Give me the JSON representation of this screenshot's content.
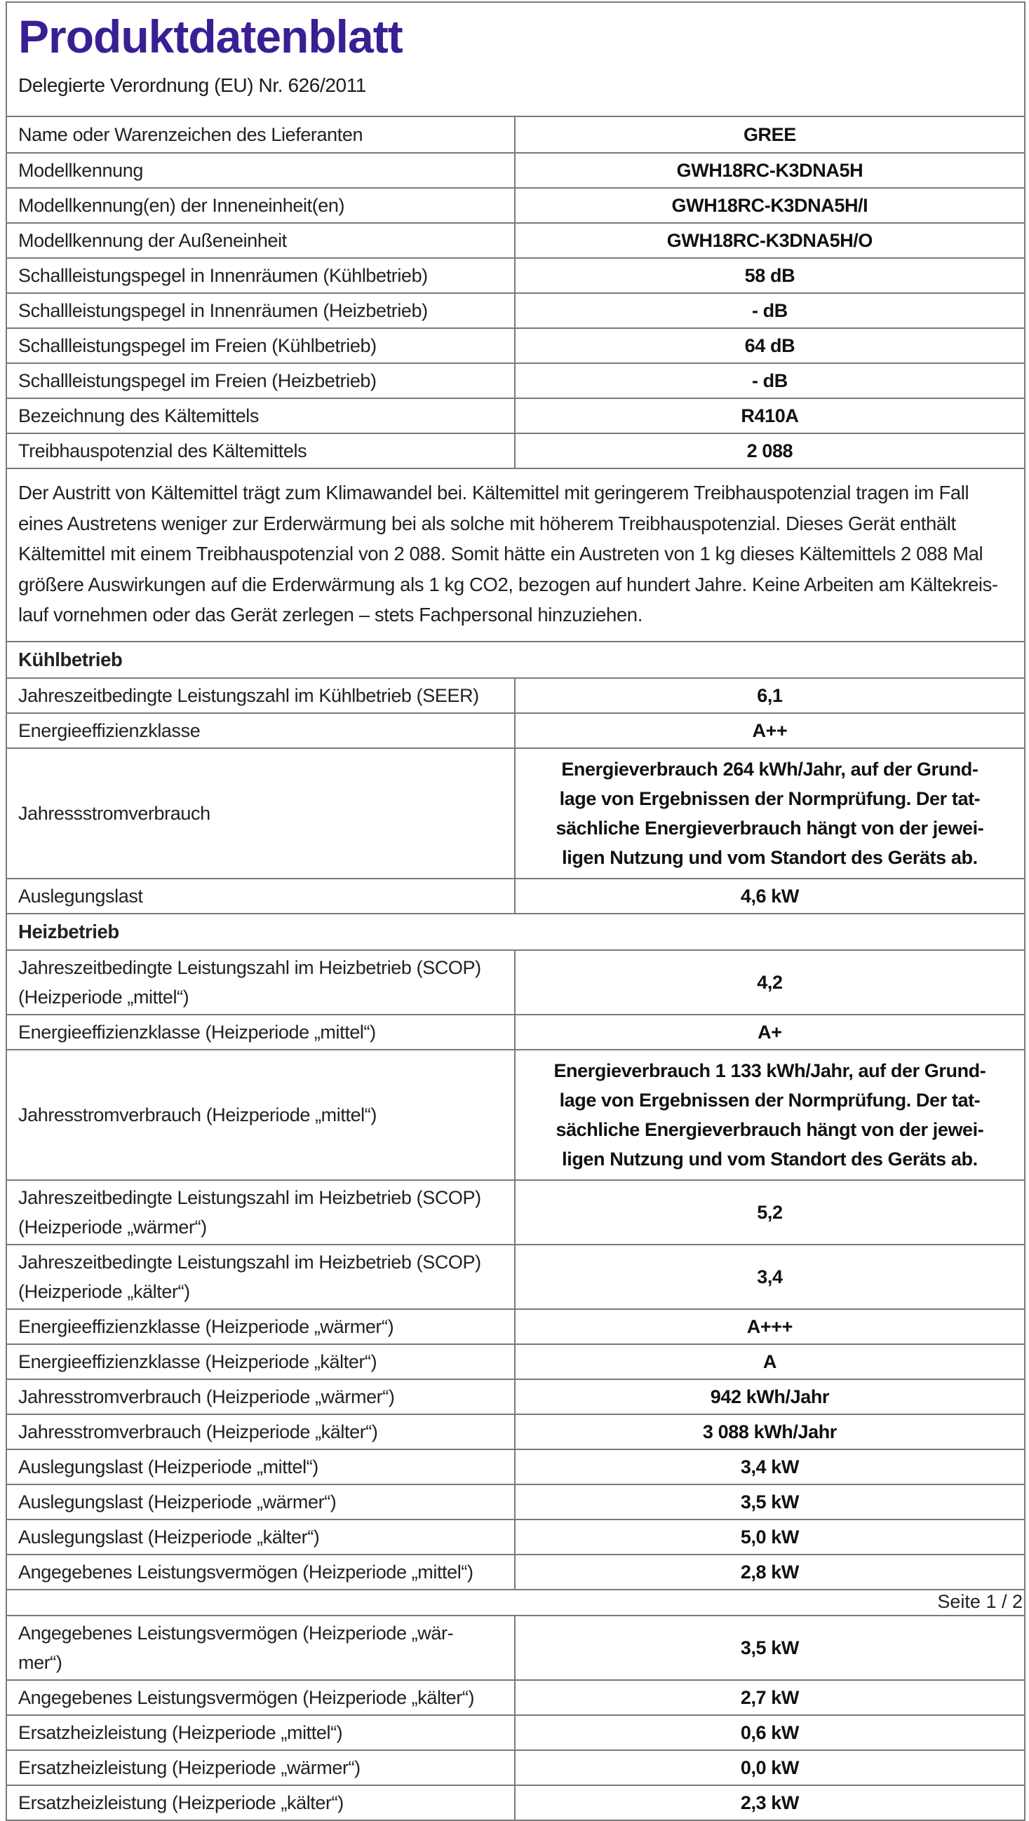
{
  "document": {
    "title": "Produktdatenblatt",
    "title_color": "#3a1f92",
    "subtitle": "Delegierte Verordnung (EU) Nr. 626/2011",
    "page_indicator": "Seite 1 / 2",
    "border_color": "#7a7a7a",
    "rows": [
      {
        "type": "data",
        "label": "Name oder Warenzeichen des Lieferanten",
        "value": "GREE"
      },
      {
        "type": "data",
        "label": "Modellkennung",
        "value": "GWH18RC-K3DNA5H"
      },
      {
        "type": "data",
        "label": "Modellkennung(en) der Inneneinheit(en)",
        "value": "GWH18RC-K3DNA5H/I"
      },
      {
        "type": "data",
        "label": "Modellkennung der Außeneinheit",
        "value": "GWH18RC-K3DNA5H/O"
      },
      {
        "type": "data",
        "label": "Schallleistungspegel in Innenräumen (Kühlbetrieb)",
        "value": "58 dB"
      },
      {
        "type": "data",
        "label": "Schallleistungspegel in Innenräumen (Heizbetrieb)",
        "value": "- dB"
      },
      {
        "type": "data",
        "label": "Schallleistungspegel im Freien (Kühlbetrieb)",
        "value": "64 dB"
      },
      {
        "type": "data",
        "label": "Schallleistungspegel im Freien (Heizbetrieb)",
        "value": "- dB"
      },
      {
        "type": "data",
        "label": "Bezeichnung des Kältemittels",
        "value": "R410A"
      },
      {
        "type": "data",
        "label": "Treibhauspotenzial des Kältemittels",
        "value": "2 088"
      },
      {
        "type": "note",
        "lines": [
          "Der Austritt von Kältemittel trägt zum Klimawandel bei. Kältemittel mit geringerem Treibhauspotenzial tragen im Fall",
          "eines Austretens weniger zur Erderwärmung bei als solche mit höherem Treibhauspotenzial. Dieses Gerät enthält",
          "Kältemittel mit einem Treibhauspotenzial von 2 088. Somit hätte ein Austreten von 1 kg dieses Kältemittels 2 088 Mal",
          "größere Auswirkungen auf die Erderwärmung als 1 kg CO2, bezogen auf hundert Jahre. Keine Arbeiten am Kältekreis-",
          "lauf vornehmen oder das Gerät zerlegen – stets Fachpersonal hinzuziehen."
        ]
      },
      {
        "type": "section",
        "label": "Kühlbetrieb"
      },
      {
        "type": "data",
        "label": "Jahreszeitbedingte Leistungszahl im Kühlbetrieb (SEER)",
        "value": "6,1"
      },
      {
        "type": "data",
        "label": "Energieeffizienzklasse",
        "value": "A++"
      },
      {
        "type": "data",
        "label": "Jahressstromverbrauch",
        "value": [
          "Energieverbrauch 264 kWh/Jahr, auf der Grund-",
          "lage von Ergebnissen der Normprüfung. Der tat-",
          "sächliche Energieverbrauch hängt von der jewei-",
          "ligen Nutzung und vom Standort des Geräts ab."
        ]
      },
      {
        "type": "data",
        "label": "Auslegungslast",
        "value": "4,6 kW"
      },
      {
        "type": "section",
        "label": "Heizbetrieb"
      },
      {
        "type": "data",
        "label": [
          "Jahreszeitbedingte Leistungszahl im Heizbetrieb (SCOP)",
          "(Heizperiode „mittel“)"
        ],
        "value": "4,2"
      },
      {
        "type": "data",
        "label": "Energieeffizienzklasse (Heizperiode „mittel“)",
        "value": "A+"
      },
      {
        "type": "data",
        "label": "Jahresstromverbrauch (Heizperiode „mittel“)",
        "value": [
          "Energieverbrauch 1 133 kWh/Jahr, auf der Grund-",
          "lage von Ergebnissen der Normprüfung. Der tat-",
          "sächliche Energieverbrauch hängt von der jewei-",
          "ligen Nutzung und vom Standort des Geräts ab."
        ]
      },
      {
        "type": "data",
        "label": [
          "Jahreszeitbedingte Leistungszahl im Heizbetrieb (SCOP)",
          "(Heizperiode „wärmer“)"
        ],
        "value": "5,2"
      },
      {
        "type": "data",
        "label": [
          "Jahreszeitbedingte Leistungszahl im Heizbetrieb (SCOP)",
          "(Heizperiode „kälter“)"
        ],
        "value": "3,4"
      },
      {
        "type": "data",
        "label": "Energieeffizienzklasse (Heizperiode „wärmer“)",
        "value": "A+++"
      },
      {
        "type": "data",
        "label": "Energieeffizienzklasse (Heizperiode „kälter“)",
        "value": "A"
      },
      {
        "type": "data",
        "label": "Jahresstromverbrauch (Heizperiode „wärmer“)",
        "value": "942 kWh/Jahr"
      },
      {
        "type": "data",
        "label": "Jahresstromverbrauch (Heizperiode „kälter“)",
        "value": "3 088 kWh/Jahr"
      },
      {
        "type": "data",
        "label": "Auslegungslast (Heizperiode „mittel“)",
        "value": "3,4 kW"
      },
      {
        "type": "data",
        "label": "Auslegungslast (Heizperiode „wärmer“)",
        "value": "3,5 kW"
      },
      {
        "type": "data",
        "label": "Auslegungslast (Heizperiode „kälter“)",
        "value": "5,0 kW"
      },
      {
        "type": "data",
        "label": "Angegebenes Leistungsvermögen (Heizperiode „mittel“)",
        "value": "2,8 kW"
      },
      {
        "type": "pagebreak",
        "label": "Seite 1 / 2"
      },
      {
        "type": "data",
        "label": [
          "Angegebenes Leistungsvermögen (Heizperiode „wär-",
          "mer“)"
        ],
        "value": "3,5 kW"
      },
      {
        "type": "data",
        "label": "Angegebenes Leistungsvermögen (Heizperiode „kälter“)",
        "value": "2,7 kW"
      },
      {
        "type": "data",
        "label": "Ersatzheizleistung (Heizperiode „mittel“)",
        "value": "0,6 kW"
      },
      {
        "type": "data",
        "label": "Ersatzheizleistung (Heizperiode „wärmer“)",
        "value": "0,0 kW"
      },
      {
        "type": "data",
        "label": "Ersatzheizleistung (Heizperiode „kälter“)",
        "value": "2,3 kW"
      }
    ]
  }
}
